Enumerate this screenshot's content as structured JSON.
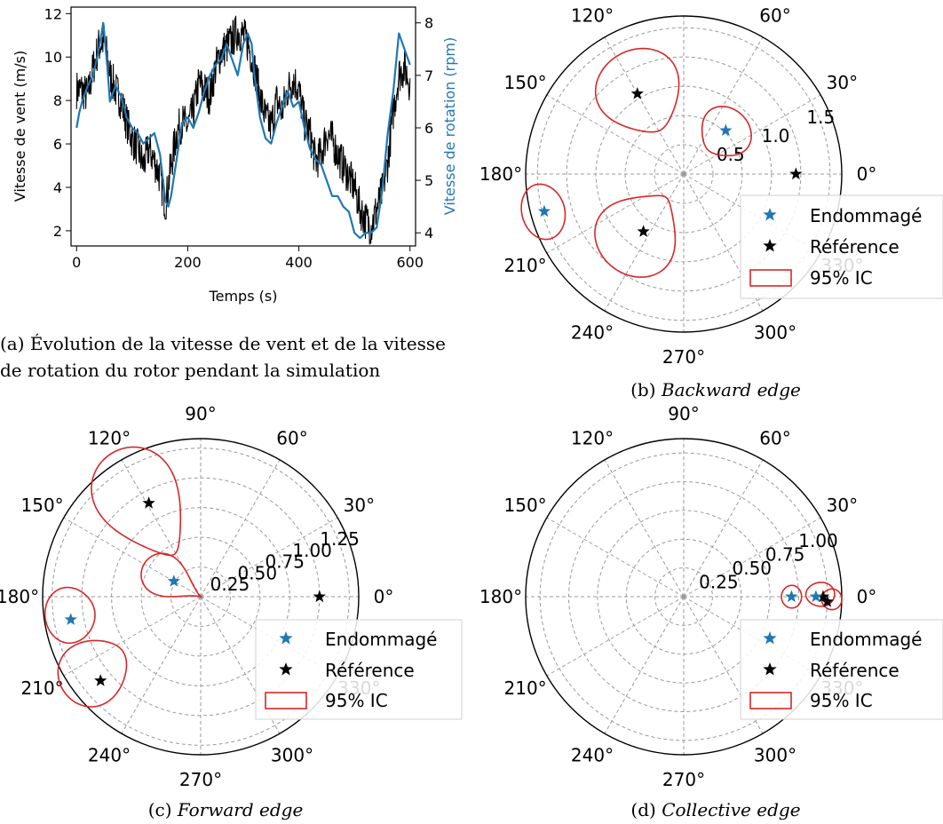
{
  "colors": {
    "damaged": "#1f77b4",
    "reference": "#000000",
    "ci": "#d62728",
    "grid": "#9a9a9a",
    "axis": "#000000"
  },
  "captions": {
    "a_line1": "(a) Évolution de la vitesse de vent et de la vitesse",
    "a_line2": "de rotation du rotor pendant la simulation",
    "b_prefix": "(b) ",
    "b_name": "Backward edge",
    "c_prefix": "(c) ",
    "c_name": "Forward edge",
    "d_prefix": "(d) ",
    "d_name": "Collective edge"
  },
  "legend": {
    "damaged": "Endommagé",
    "reference": "Référence",
    "ci": "95% IC"
  },
  "chart_data": [
    {
      "id": "a",
      "type": "line",
      "xlabel": "Temps (s)",
      "ylabel": "Vitesse de vent (m/s)",
      "y2label": "Vitesse de rotation (rpm)",
      "xlim": [
        -10,
        610
      ],
      "ylim": [
        1.3,
        12.3
      ],
      "y2lim": [
        3.75,
        8.3
      ],
      "xticks": [
        0,
        200,
        400,
        600
      ],
      "yticks": [
        2,
        4,
        6,
        8,
        10,
        12
      ],
      "y2ticks": [
        4,
        5,
        6,
        7,
        8
      ],
      "series": [
        {
          "axis": "left",
          "color": "#000000",
          "noise": 0.9,
          "x": [
            0,
            10,
            20,
            30,
            40,
            50,
            60,
            70,
            80,
            90,
            100,
            110,
            120,
            130,
            140,
            150,
            160,
            170,
            180,
            190,
            200,
            210,
            220,
            230,
            240,
            250,
            260,
            270,
            280,
            290,
            300,
            310,
            320,
            330,
            340,
            350,
            360,
            370,
            380,
            390,
            400,
            410,
            420,
            430,
            440,
            450,
            460,
            470,
            480,
            490,
            500,
            510,
            520,
            530,
            540,
            550,
            560,
            570,
            580,
            590,
            600
          ],
          "y": [
            8.5,
            8.5,
            8.2,
            9.5,
            10.5,
            10.8,
            9.2,
            8.5,
            8.0,
            7.0,
            6.2,
            5.8,
            5.0,
            5.8,
            5.2,
            4.5,
            3.2,
            5.0,
            6.5,
            7.0,
            6.8,
            7.5,
            8.8,
            8.5,
            8.2,
            9.5,
            10.2,
            10.5,
            10.8,
            11.2,
            11.0,
            10.5,
            9.5,
            8.2,
            7.2,
            6.8,
            8.0,
            7.5,
            8.5,
            9.0,
            8.5,
            7.0,
            6.5,
            5.2,
            5.5,
            6.5,
            6.2,
            5.5,
            5.0,
            4.5,
            4.0,
            3.0,
            2.5,
            2.2,
            3.0,
            3.8,
            5.2,
            7.5,
            9.2,
            9.5,
            8.8
          ]
        },
        {
          "axis": "right",
          "color": "#1f77b4",
          "noise": 0,
          "x": [
            0,
            5,
            10,
            20,
            30,
            40,
            48,
            55,
            60,
            70,
            80,
            90,
            100,
            110,
            120,
            130,
            140,
            150,
            160,
            165,
            170,
            180,
            190,
            200,
            210,
            220,
            230,
            240,
            250,
            260,
            270,
            280,
            290,
            300,
            308,
            315,
            320,
            330,
            340,
            350,
            360,
            370,
            380,
            390,
            400,
            410,
            420,
            430,
            440,
            450,
            460,
            470,
            480,
            490,
            500,
            510,
            520,
            530,
            540,
            550,
            560,
            570,
            580,
            590,
            600
          ],
          "y": [
            6.0,
            6.3,
            6.5,
            6.8,
            7.0,
            7.5,
            8.0,
            7.2,
            6.5,
            6.8,
            6.6,
            6.2,
            6.0,
            5.9,
            5.7,
            5.8,
            5.9,
            5.5,
            4.6,
            4.5,
            4.7,
            5.4,
            6.1,
            6.2,
            6.0,
            6.3,
            6.7,
            7.0,
            7.2,
            7.3,
            7.6,
            7.3,
            7.0,
            7.6,
            7.8,
            7.6,
            7.0,
            6.2,
            5.8,
            5.7,
            6.1,
            6.4,
            6.7,
            6.4,
            6.5,
            6.0,
            5.6,
            5.4,
            5.3,
            5.0,
            4.7,
            4.7,
            4.5,
            4.4,
            4.0,
            3.9,
            4.0,
            4.0,
            4.1,
            4.8,
            5.9,
            6.7,
            7.8,
            7.5,
            7.2
          ]
        }
      ]
    },
    {
      "id": "b",
      "type": "scatter",
      "projection": "polar",
      "rlim": [
        0,
        1.62
      ],
      "rticks": [
        "0.5",
        "1.0",
        "1.5"
      ],
      "rtick_values": [
        0.5,
        1.0,
        1.5
      ],
      "rgrid": [
        0.3,
        0.6,
        0.9,
        1.2,
        1.5
      ],
      "rlabel_angle_deg": 22.5,
      "theta_ticks": [
        "0°",
        "30°",
        "60°",
        "90°",
        "120°",
        "150°",
        "180°",
        "210°",
        "240°",
        "270°",
        "300°",
        "330°"
      ],
      "damaged": [
        {
          "theta_deg": 46,
          "r": 0.62
        },
        {
          "theta_deg": 195,
          "r": 1.48
        }
      ],
      "reference": [
        {
          "theta_deg": 0,
          "r": 1.15
        },
        {
          "theta_deg": 120,
          "r": 0.95
        },
        {
          "theta_deg": 235,
          "r": 0.72
        }
      ],
      "ci": [
        {
          "theta_deg": 45,
          "r": 0.6,
          "dr": 0.25,
          "dt": 25
        },
        {
          "theta_deg": 195,
          "r": 1.49,
          "dr": 0.22,
          "dt": 11
        },
        {
          "theta_deg": 118,
          "r": 0.95,
          "dr": 0.44,
          "dt": 25
        },
        {
          "theta_deg": 233,
          "r": 0.75,
          "dr": 0.45,
          "dt": 30
        }
      ]
    },
    {
      "id": "c",
      "type": "scatter",
      "projection": "polar",
      "rlim": [
        0,
        1.33
      ],
      "rticks": [
        "0.25",
        "0.50",
        "0.75",
        "1.00",
        "1.25"
      ],
      "rtick_values": [
        0.25,
        0.5,
        0.75,
        1.0,
        1.25
      ],
      "rgrid": [
        0.25,
        0.5,
        0.75,
        1.0,
        1.25
      ],
      "rlabel_angle_deg": 22.5,
      "theta_ticks": [
        "0°",
        "30°",
        "60°",
        "90°",
        "120°",
        "150°",
        "180°",
        "210°",
        "240°",
        "270°",
        "300°",
        "330°"
      ],
      "damaged": [
        {
          "theta_deg": 150,
          "r": 0.26
        },
        {
          "theta_deg": 190,
          "r": 1.11
        }
      ],
      "reference": [
        {
          "theta_deg": 0,
          "r": 1.0
        },
        {
          "theta_deg": 119,
          "r": 0.9
        },
        {
          "theta_deg": 220,
          "r": 1.1
        }
      ],
      "ci": [
        {
          "theta_deg": 150,
          "r": 0.25,
          "dr": 0.3,
          "dt": 30
        },
        {
          "theta_deg": 122,
          "r": 0.92,
          "dr": 0.5,
          "dt": 20
        },
        {
          "theta_deg": 188,
          "r": 1.11,
          "dr": 0.21,
          "dt": 12
        },
        {
          "theta_deg": 215,
          "r": 1.1,
          "dr": 0.3,
          "dt": 14
        }
      ]
    },
    {
      "id": "d",
      "type": "scatter",
      "projection": "polar",
      "rlim": [
        0,
        1.1
      ],
      "rticks": [
        "0.25",
        "0.50",
        "0.75",
        "1.00"
      ],
      "rtick_values": [
        0.25,
        0.5,
        0.75,
        1.0
      ],
      "rgrid": [
        0.2,
        0.4,
        0.6,
        0.8,
        1.0
      ],
      "rlabel_angle_deg": 22.5,
      "theta_ticks": [
        "0°",
        "30°",
        "60°",
        "90°",
        "120°",
        "150°",
        "180°",
        "210°",
        "240°",
        "270°",
        "300°",
        "330°"
      ],
      "damaged": [
        {
          "theta_deg": 0,
          "r": 0.75
        },
        {
          "theta_deg": 0,
          "r": 0.92
        }
      ],
      "reference": [
        {
          "theta_deg": 0,
          "r": 0.97
        },
        {
          "theta_deg": -2,
          "r": 1.0
        }
      ],
      "ci": [
        {
          "theta_deg": 0,
          "r": 0.75,
          "dr": 0.07,
          "dt": 6
        },
        {
          "theta_deg": 1,
          "r": 0.95,
          "dr": 0.1,
          "dt": 5
        },
        {
          "theta_deg": -1,
          "r": 1.03,
          "dr": 0.07,
          "dt": 4
        }
      ]
    }
  ]
}
